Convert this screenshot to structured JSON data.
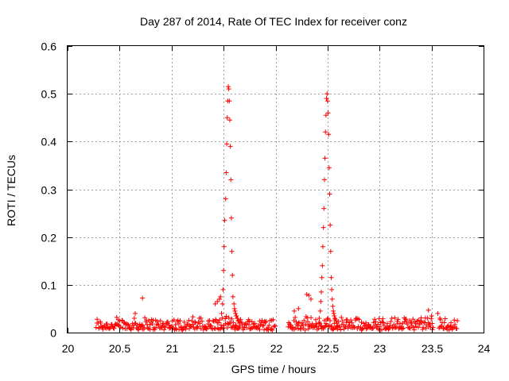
{
  "chart_data": {
    "type": "scatter",
    "title": "Day 287 of 2014, Rate Of TEC Index for receiver conz",
    "xlabel": "GPS time / hours",
    "ylabel": "ROTI / TECUs",
    "xlim": [
      20,
      24
    ],
    "ylim": [
      0,
      0.6
    ],
    "x_ticks": [
      20,
      20.5,
      21,
      21.5,
      22,
      22.5,
      23,
      23.5,
      24
    ],
    "x_tick_labels": [
      "20",
      "20.5",
      "21",
      "21.5",
      "22",
      "22.5",
      "23",
      "23.5",
      "24"
    ],
    "y_ticks": [
      0,
      0.1,
      0.2,
      0.3,
      0.4,
      0.5,
      0.6
    ],
    "y_tick_labels": [
      "0",
      "0.1",
      "0.2",
      "0.3",
      "0.4",
      "0.5",
      "0.6"
    ],
    "grid": true,
    "marker": "+",
    "series": [
      {
        "name": "ROTI",
        "color": "#ff0000",
        "x": [
          21.48,
          21.49,
          21.495,
          21.5,
          21.505,
          21.51,
          21.52,
          21.525,
          21.53,
          21.535,
          21.54,
          21.545,
          21.55,
          21.555,
          21.56,
          21.565,
          21.57,
          21.575,
          21.58,
          21.585,
          21.59,
          21.6,
          21.605,
          21.61,
          21.615,
          21.62,
          21.625,
          21.63,
          21.635,
          21.64,
          21.65,
          22.42,
          22.43,
          22.435,
          22.44,
          22.445,
          22.45,
          22.455,
          22.46,
          22.465,
          22.47,
          22.475,
          22.48,
          22.485,
          22.49,
          22.495,
          22.5,
          22.505,
          22.51,
          22.515,
          22.52,
          22.525,
          22.53,
          22.535,
          22.54,
          22.545,
          22.55,
          22.555,
          22.56,
          22.565,
          22.57,
          22.58,
          22.59,
          22.6,
          20.72,
          20.65,
          21.42,
          21.44,
          21.46,
          21.47,
          22.18,
          22.22,
          22.3,
          22.32,
          22.34,
          23.47,
          23.5,
          23.56,
          23.58
        ],
        "y": [
          0.04,
          0.06,
          0.09,
          0.13,
          0.18,
          0.235,
          0.28,
          0.335,
          0.395,
          0.45,
          0.485,
          0.515,
          0.51,
          0.485,
          0.445,
          0.39,
          0.32,
          0.24,
          0.17,
          0.12,
          0.075,
          0.06,
          0.05,
          0.045,
          0.04,
          0.035,
          0.035,
          0.03,
          0.03,
          0.025,
          0.02,
          0.03,
          0.045,
          0.065,
          0.085,
          0.115,
          0.14,
          0.18,
          0.22,
          0.26,
          0.32,
          0.365,
          0.42,
          0.455,
          0.49,
          0.5,
          0.485,
          0.46,
          0.415,
          0.345,
          0.29,
          0.225,
          0.17,
          0.115,
          0.09,
          0.07,
          0.055,
          0.045,
          0.04,
          0.035,
          0.03,
          0.025,
          0.02,
          0.015,
          0.072,
          0.04,
          0.06,
          0.065,
          0.07,
          0.075,
          0.045,
          0.05,
          0.08,
          0.078,
          0.07,
          0.047,
          0.035,
          0.04,
          0.03
        ],
        "noise_band": {
          "segments": [
            [
              20.27,
              22.0
            ],
            [
              22.12,
              23.52
            ],
            [
              23.57,
              23.75
            ]
          ],
          "y_min": 0.005,
          "y_max": 0.04,
          "count": 520
        }
      }
    ]
  }
}
